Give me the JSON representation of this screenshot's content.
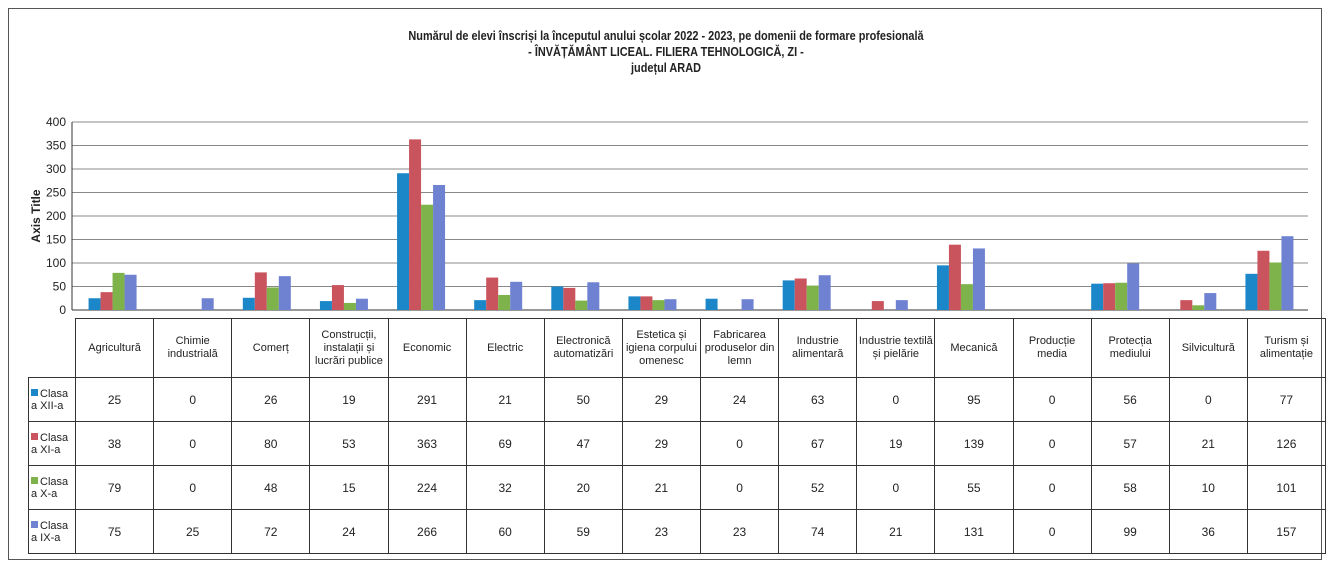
{
  "chart_data": {
    "type": "bar",
    "title_lines": [
      "Numărul de elevi înscriși la începutul anului școlar 2022 - 2023, pe domenii de formare profesională",
      "- ÎNVĂȚĂMÂNT LICEAL. FILIERA TEHNOLOGICĂ, ZI -",
      "județul ARAD"
    ],
    "ylabel": "Axis Title",
    "ylim": [
      0,
      400
    ],
    "yticks": [
      "0",
      "50",
      "100",
      "150",
      "200",
      "250",
      "300",
      "350",
      "400"
    ],
    "grid": true,
    "categories": [
      "Agricultură",
      "Chimie industrială",
      "Comerț",
      "Construcții, instalații și lucrări publice",
      "Economic",
      "Electric",
      "Electronică automatizări",
      "Estetica și igiena corpului omenesc",
      "Fabricarea produselor din lemn",
      "Industrie alimentară",
      "Industrie textilă și pielărie",
      "Mecanică",
      "Producție media",
      "Protecția mediului",
      "Silvicultură",
      "Turism și alimentație"
    ],
    "series": [
      {
        "name": "Clasa a XII-a",
        "color": "#1b87c9",
        "values": [
          25,
          0,
          26,
          19,
          291,
          21,
          50,
          29,
          24,
          63,
          0,
          95,
          0,
          56,
          0,
          77
        ]
      },
      {
        "name": "Clasa a XI-a",
        "color": "#c9545e",
        "values": [
          38,
          0,
          80,
          53,
          363,
          69,
          47,
          29,
          0,
          67,
          19,
          139,
          0,
          57,
          21,
          126
        ]
      },
      {
        "name": "Clasa a X-a",
        "color": "#7db34a",
        "values": [
          79,
          0,
          48,
          15,
          224,
          32,
          20,
          21,
          0,
          52,
          0,
          55,
          0,
          58,
          10,
          101
        ]
      },
      {
        "name": "Clasa a IX-a",
        "color": "#6f82d1",
        "values": [
          75,
          25,
          72,
          24,
          266,
          60,
          59,
          23,
          23,
          74,
          21,
          131,
          0,
          99,
          36,
          157
        ]
      }
    ]
  }
}
